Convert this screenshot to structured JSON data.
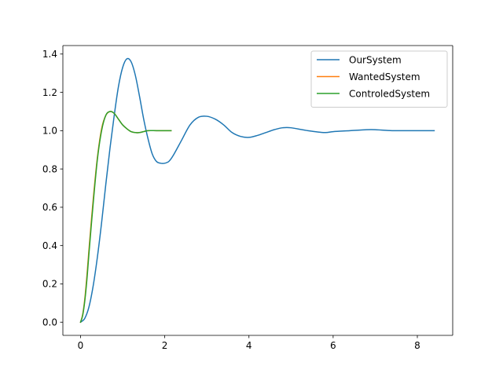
{
  "chart_data": {
    "type": "line",
    "title": "",
    "xlabel": "",
    "ylabel": "",
    "xlim": [
      -0.42,
      8.84
    ],
    "ylim": [
      -0.0688,
      1.4443
    ],
    "xticks": [
      0,
      2,
      4,
      6,
      8
    ],
    "yticks": [
      0.0,
      0.2,
      0.4,
      0.6,
      0.8,
      1.0,
      1.2,
      1.4
    ],
    "xtick_labels": [
      "0",
      "2",
      "4",
      "6",
      "8"
    ],
    "ytick_labels": [
      "0.0",
      "0.2",
      "0.4",
      "0.6",
      "0.8",
      "1.0",
      "1.2",
      "1.4"
    ],
    "grid": false,
    "legend_location": "upper right",
    "series": [
      {
        "name": "OurSystem",
        "color": "#1f77b4",
        "x": [
          0,
          0.1,
          0.2,
          0.3,
          0.4,
          0.5,
          0.6,
          0.7,
          0.8,
          0.9,
          1.0,
          1.1,
          1.2,
          1.3,
          1.4,
          1.5,
          1.6,
          1.7,
          1.8,
          1.9,
          2.0,
          2.1,
          2.2,
          2.4,
          2.6,
          2.8,
          3.0,
          3.2,
          3.4,
          3.6,
          3.8,
          4.0,
          4.2,
          4.4,
          4.6,
          4.8,
          5.0,
          5.4,
          5.8,
          6.0,
          6.4,
          6.8,
          7.0,
          7.4,
          7.8,
          8.0,
          8.4
        ],
        "values": [
          0.0,
          0.02,
          0.08,
          0.19,
          0.34,
          0.52,
          0.72,
          0.91,
          1.08,
          1.23,
          1.33,
          1.375,
          1.36,
          1.29,
          1.18,
          1.06,
          0.96,
          0.88,
          0.84,
          0.83,
          0.83,
          0.84,
          0.87,
          0.95,
          1.03,
          1.07,
          1.075,
          1.06,
          1.03,
          0.99,
          0.97,
          0.965,
          0.975,
          0.99,
          1.005,
          1.015,
          1.015,
          1.0,
          0.99,
          0.995,
          1.0,
          1.005,
          1.005,
          1.0,
          1.0,
          1.0,
          1.0
        ]
      },
      {
        "name": "WantedSystem",
        "color": "#ff7f0e",
        "x": [
          0,
          0.05,
          0.1,
          0.15,
          0.2,
          0.3,
          0.4,
          0.5,
          0.6,
          0.7,
          0.8,
          0.9,
          1.0,
          1.1,
          1.2,
          1.3,
          1.4,
          1.5,
          1.6,
          1.8,
          2.0,
          2.15
        ],
        "values": [
          0.0,
          0.04,
          0.12,
          0.24,
          0.38,
          0.64,
          0.86,
          1.01,
          1.08,
          1.1,
          1.09,
          1.06,
          1.03,
          1.01,
          0.995,
          0.99,
          0.99,
          0.995,
          1.0,
          1.0,
          1.0,
          1.0
        ]
      },
      {
        "name": "ControledSystem",
        "color": "#2ca02c",
        "x": [
          0,
          0.05,
          0.1,
          0.15,
          0.2,
          0.3,
          0.4,
          0.5,
          0.6,
          0.7,
          0.8,
          0.9,
          1.0,
          1.1,
          1.2,
          1.3,
          1.4,
          1.5,
          1.6,
          1.8,
          2.0,
          2.15
        ],
        "values": [
          0.0,
          0.035,
          0.11,
          0.22,
          0.36,
          0.62,
          0.85,
          1.0,
          1.08,
          1.1,
          1.09,
          1.06,
          1.03,
          1.01,
          0.995,
          0.99,
          0.99,
          0.995,
          1.0,
          1.0,
          1.0,
          1.0
        ]
      }
    ]
  }
}
